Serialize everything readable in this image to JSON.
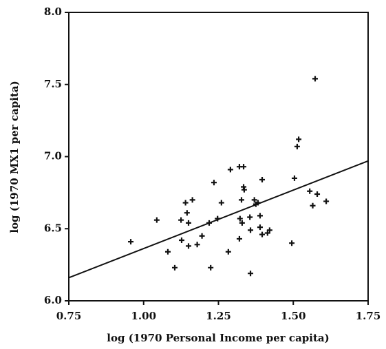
{
  "chart_data": {
    "type": "scatter",
    "x_label": "log (1970 Personal Income per capita)",
    "y_label": "log (1970 MX1 per capita)",
    "series": [
      {
        "color": "#111111",
        "x": [
          0.957,
          1.044,
          1.081,
          1.104,
          1.125,
          1.127,
          1.14,
          1.145,
          1.15,
          1.15,
          1.163,
          1.179,
          1.195,
          1.219,
          1.224,
          1.235,
          1.247,
          1.26,
          1.283,
          1.29,
          1.32,
          1.334,
          1.32,
          1.322,
          1.327,
          1.329,
          1.334,
          1.336,
          1.355,
          1.357,
          1.357,
          1.37,
          1.375,
          1.382,
          1.389,
          1.389,
          1.396,
          1.396,
          1.414,
          1.421,
          1.495,
          1.504,
          1.513,
          1.518,
          1.573,
          1.555,
          1.565,
          1.58,
          1.61
        ],
        "values": [
          6.41,
          6.56,
          6.34,
          6.23,
          6.56,
          6.42,
          6.68,
          6.61,
          6.54,
          6.38,
          6.7,
          6.39,
          6.45,
          6.54,
          6.23,
          6.82,
          6.57,
          6.68,
          6.34,
          6.91,
          6.93,
          6.93,
          6.43,
          6.57,
          6.7,
          6.54,
          6.79,
          6.77,
          6.58,
          6.49,
          6.19,
          6.7,
          6.67,
          6.68,
          6.59,
          6.51,
          6.84,
          6.46,
          6.47,
          6.49,
          6.4,
          6.85,
          7.07,
          7.12,
          7.54,
          6.76,
          6.66,
          6.74,
          6.69
        ]
      }
    ],
    "fit_line": {
      "x": [
        0.75,
        1.75
      ],
      "values": [
        6.16,
        6.97
      ]
    },
    "xlim": [
      0.75,
      1.75
    ],
    "ylim": [
      6.0,
      8.0
    ],
    "xticks": [
      {
        "value": 0.75,
        "label": "0.75"
      },
      {
        "value": 1.0,
        "label": "1.00"
      },
      {
        "value": 1.25,
        "label": "1.25"
      },
      {
        "value": 1.5,
        "label": "1.50"
      },
      {
        "value": 1.75,
        "label": "1.75"
      }
    ],
    "yticks": [
      {
        "value": 6.0,
        "label": "6.0"
      },
      {
        "value": 6.5,
        "label": "6.5"
      },
      {
        "value": 7.0,
        "label": "7.0"
      },
      {
        "value": 7.5,
        "label": "7.5"
      },
      {
        "value": 8.0,
        "label": "8.0"
      }
    ]
  }
}
